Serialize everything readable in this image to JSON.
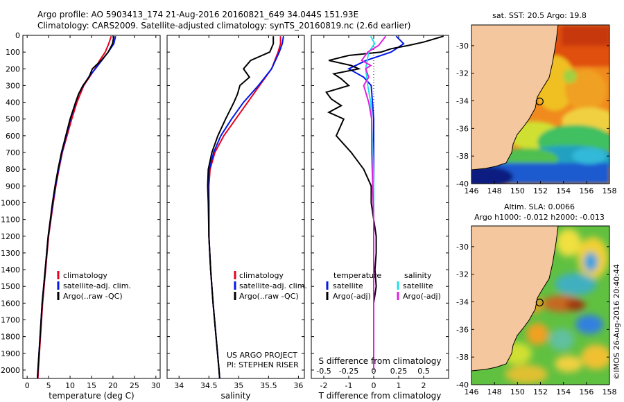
{
  "header": {
    "line1": "Argo profile: AO 5903413_174 21-Aug-2016 20160821_649 34.044S 151.93E",
    "line2": "Climatology: CARS2009. Satellite-adjusted climatology: synTS_20160819.nc (2.6d earlier)"
  },
  "footer": {
    "vertical": "©IMOS 26-Aug-2016 20:40:44",
    "project": "US ARGO PROJECT",
    "pi": "PI: STEPHEN RISER"
  },
  "colors": {
    "climatology": "#e8001c",
    "satellite": "#0018e8",
    "argo": "#000000",
    "sal_satellite": "#22e0e8",
    "sal_argo": "#e020e0",
    "land": "#f5c79e"
  },
  "chart_data": [
    {
      "type": "line",
      "xlabel": "temperature (deg C)",
      "ylabel": "",
      "xlim": [
        -1,
        31
      ],
      "ylim": [
        2050,
        0
      ],
      "xticks": [
        "0",
        "5",
        "10",
        "15",
        "20",
        "25",
        "30"
      ],
      "yticks": [
        "0",
        "100",
        "200",
        "300",
        "400",
        "500",
        "600",
        "700",
        "800",
        "900",
        "1000",
        "1100",
        "1200",
        "1300",
        "1400",
        "1500",
        "1600",
        "1700",
        "1800",
        "1900",
        "2000"
      ],
      "legend": [
        "climatology",
        "satellite-adj. clim.",
        "Argo(..raw -QC)"
      ],
      "series": [
        {
          "name": "climatology",
          "depth": [
            5,
            50,
            100,
            150,
            200,
            250,
            300,
            350,
            400,
            500,
            600,
            700,
            800,
            900,
            1000,
            1200,
            1400,
            1600,
            1800,
            2000,
            2050
          ],
          "values": [
            19.6,
            19.0,
            18.2,
            16.9,
            15.8,
            14.5,
            13.2,
            12.4,
            11.6,
            10.4,
            9.3,
            8.2,
            7.4,
            6.7,
            6.1,
            5.0,
            4.3,
            3.6,
            3.1,
            2.6,
            2.5
          ]
        },
        {
          "name": "satellite-adj. clim.",
          "depth": [
            5,
            50,
            100,
            150,
            200,
            250,
            300,
            350,
            400,
            500,
            600,
            700,
            800,
            900,
            1000,
            1200,
            1400,
            1600,
            1800,
            2000,
            2050
          ],
          "values": [
            20.6,
            20.2,
            18.9,
            17.4,
            15.9,
            14.3,
            13.1,
            12.0,
            11.3,
            10.1,
            9.1,
            8.1,
            7.3,
            6.6,
            6.0,
            4.9,
            4.2,
            3.5,
            3.0,
            2.5,
            2.4
          ]
        },
        {
          "name": "Argo(..raw -QC)",
          "depth": [
            5,
            50,
            100,
            150,
            180,
            200,
            250,
            300,
            350,
            400,
            500,
            600,
            700,
            800,
            900,
            1000,
            1200,
            1400,
            1600,
            1800,
            2000,
            2050
          ],
          "values": [
            20.2,
            19.9,
            18.9,
            17.3,
            16.0,
            15.2,
            14.4,
            13.0,
            12.0,
            11.3,
            10.0,
            9.0,
            8.0,
            7.2,
            6.5,
            5.9,
            4.9,
            4.2,
            3.5,
            3.0,
            2.5,
            2.4
          ]
        }
      ]
    },
    {
      "type": "line",
      "xlabel": "salinity",
      "ylabel": "",
      "xlim": [
        33.8,
        36.1
      ],
      "ylim": [
        2050,
        0
      ],
      "xticks": [
        "34",
        "34.5",
        "35",
        "35.5",
        "36"
      ],
      "legend": [
        "climatology",
        "satellite-adj. clim.",
        "Argo(..raw -QC)"
      ],
      "series": [
        {
          "name": "climatology",
          "depth": [
            5,
            50,
            100,
            200,
            300,
            400,
            500,
            600,
            700,
            800,
            900,
            1000,
            1200,
            1400,
            1600,
            1800,
            2000,
            2050
          ],
          "values": [
            35.7,
            35.7,
            35.66,
            35.55,
            35.35,
            35.15,
            34.95,
            34.75,
            34.6,
            34.52,
            34.5,
            34.5,
            34.5,
            34.53,
            34.57,
            34.62,
            34.67,
            34.68
          ]
        },
        {
          "name": "satellite-adj. clim.",
          "depth": [
            5,
            50,
            100,
            200,
            300,
            400,
            500,
            600,
            700,
            800,
            900,
            1000,
            1200,
            1400,
            1600,
            1800,
            2000,
            2050
          ],
          "values": [
            35.75,
            35.73,
            35.68,
            35.55,
            35.33,
            35.08,
            34.88,
            34.7,
            34.58,
            34.51,
            34.49,
            34.5,
            34.5,
            34.53,
            34.57,
            34.62,
            34.67,
            34.68
          ]
        },
        {
          "name": "Argo(..raw -QC)",
          "depth": [
            5,
            50,
            100,
            150,
            200,
            250,
            300,
            350,
            400,
            450,
            500,
            600,
            700,
            800,
            900,
            1000,
            1200,
            1400,
            1600,
            1800,
            2000,
            2050
          ],
          "values": [
            35.58,
            35.58,
            35.52,
            35.2,
            35.08,
            35.18,
            35.02,
            34.98,
            34.92,
            34.85,
            34.78,
            34.65,
            34.55,
            34.49,
            34.48,
            34.49,
            34.5,
            34.53,
            34.57,
            34.62,
            34.67,
            34.68
          ]
        }
      ]
    },
    {
      "type": "line",
      "xlabel": "T difference from climatology",
      "x2label": "S difference from climatology",
      "xlim": [
        -2.5,
        3.0
      ],
      "x2lim": [
        -0.625,
        0.75
      ],
      "ylim": [
        2050,
        0
      ],
      "xticks": [
        "-2",
        "-1",
        "0",
        "1",
        "2"
      ],
      "x2ticks": [
        "-0.5",
        "-0.25",
        "0",
        "0.25",
        "0.5"
      ],
      "legend_headers": [
        "temperature",
        "salinity"
      ],
      "legend": [
        "satellite",
        "Argo(-adj)",
        "satellite",
        "Argo(-adj)"
      ],
      "series": [
        {
          "name": "satellite",
          "depth": [
            5,
            50,
            100,
            150,
            200,
            250,
            300,
            400,
            500,
            700,
            900,
            1100,
            1400,
            1700,
            2000
          ],
          "values": [
            0.9,
            1.2,
            0.7,
            -0.3,
            -1.0,
            -0.4,
            -0.1,
            -0.05,
            0,
            0,
            0,
            0,
            0,
            0,
            0
          ]
        },
        {
          "name": "Argo(-adj)",
          "depth": [
            5,
            40,
            60,
            80,
            100,
            120,
            150,
            180,
            200,
            230,
            260,
            300,
            340,
            380,
            420,
            460,
            500,
            600,
            700,
            800,
            900,
            1000,
            1100,
            1200,
            1300,
            1400,
            1500,
            1600,
            1800,
            2000
          ],
          "values": [
            2.8,
            2.0,
            1.4,
            0.7,
            0.3,
            -1.0,
            -1.8,
            -0.9,
            -0.6,
            -1.6,
            -1.3,
            -1.0,
            -1.9,
            -1.7,
            -1.3,
            -1.8,
            -1.2,
            -1.5,
            -0.9,
            -0.4,
            -0.1,
            -0.1,
            0,
            0.1,
            0.1,
            0.05,
            0.1,
            0,
            0,
            0
          ]
        },
        {
          "name": "sal satellite",
          "depth": [
            5,
            50,
            100,
            200,
            300,
            400,
            500,
            700,
            900,
            1100,
            1400,
            1700,
            2000
          ],
          "values": [
            -0.03,
            0.01,
            -0.05,
            -0.08,
            -0.06,
            -0.03,
            -0.02,
            -0.01,
            0,
            0,
            0,
            0,
            0
          ]
        },
        {
          "name": "sal Argo(-adj)",
          "depth": [
            5,
            60,
            100,
            150,
            180,
            200,
            250,
            300,
            400,
            500,
            700,
            900,
            1100,
            1400,
            1700,
            2000
          ],
          "values": [
            0.12,
            0.05,
            -0.06,
            -0.12,
            -0.03,
            -0.08,
            -0.05,
            -0.1,
            -0.05,
            -0.02,
            -0.02,
            -0.01,
            0,
            0,
            0,
            0
          ]
        }
      ]
    },
    {
      "type": "heatmap",
      "title": "sat. SST: 20.5 Argo: 19.8",
      "xlim": [
        146,
        158
      ],
      "ylim": [
        -40,
        -28.5
      ],
      "xticks": [
        "146",
        "148",
        "150",
        "152",
        "154",
        "156",
        "158"
      ],
      "yticks": [
        "-30",
        "-32",
        "-34",
        "-36",
        "-38",
        "-40"
      ],
      "marker": {
        "lon": 151.93,
        "lat": -34.044
      }
    },
    {
      "type": "heatmap",
      "title": "Altim. SLA: 0.0066",
      "subtitle": "Argo h1000: -0.012 h2000: -0.013",
      "xlim": [
        146,
        158
      ],
      "ylim": [
        -40,
        -28.5
      ],
      "xticks": [
        "146",
        "148",
        "150",
        "152",
        "154",
        "156",
        "158"
      ],
      "yticks": [
        "-30",
        "-32",
        "-34",
        "-36",
        "-38",
        "-40"
      ],
      "marker": {
        "lon": 151.93,
        "lat": -34.044
      }
    }
  ]
}
